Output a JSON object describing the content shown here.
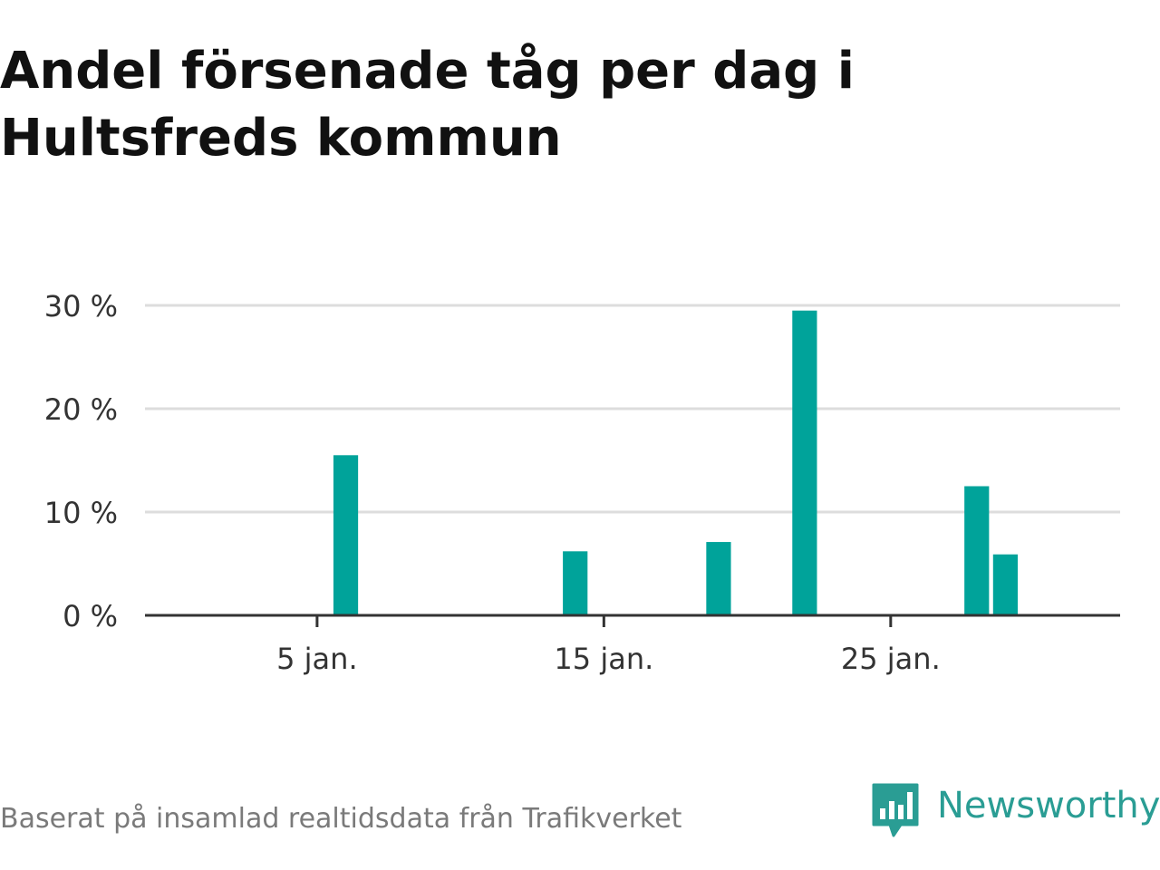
{
  "title_lines": [
    "Andel försenade tåg per dag i",
    "Hultsfreds kommun"
  ],
  "footer_note": "Baserat på insamlad realtidsdata från Trafikverket",
  "brand": "Newsworthy",
  "colors": {
    "bar": "#00a39a",
    "grid": "#dddddd",
    "axis": "#333333",
    "brand": "#2a9d94"
  },
  "chart_data": {
    "type": "bar",
    "title": "Andel försenade tåg per dag i Hultsfreds kommun",
    "xlabel": "",
    "ylabel": "",
    "x_domain": [
      "2025-12-30",
      "2026-02-02"
    ],
    "ylim": [
      0,
      30
    ],
    "y_ticks": [
      0,
      10,
      20,
      30
    ],
    "y_tick_labels": [
      "0 %",
      "10 %",
      "20 %",
      "30 %"
    ],
    "x_ticks": [
      "2026-01-05",
      "2026-01-15",
      "2026-01-25"
    ],
    "x_tick_labels": [
      "5 jan.",
      "15 jan.",
      "25 jan."
    ],
    "grid": true,
    "series": [
      {
        "x": [
          "2026-01-06",
          "2026-01-14",
          "2026-01-19",
          "2026-01-22",
          "2026-01-28",
          "2026-01-29"
        ],
        "values": [
          15.5,
          6.2,
          7.1,
          29.5,
          12.5,
          5.9
        ]
      }
    ]
  }
}
